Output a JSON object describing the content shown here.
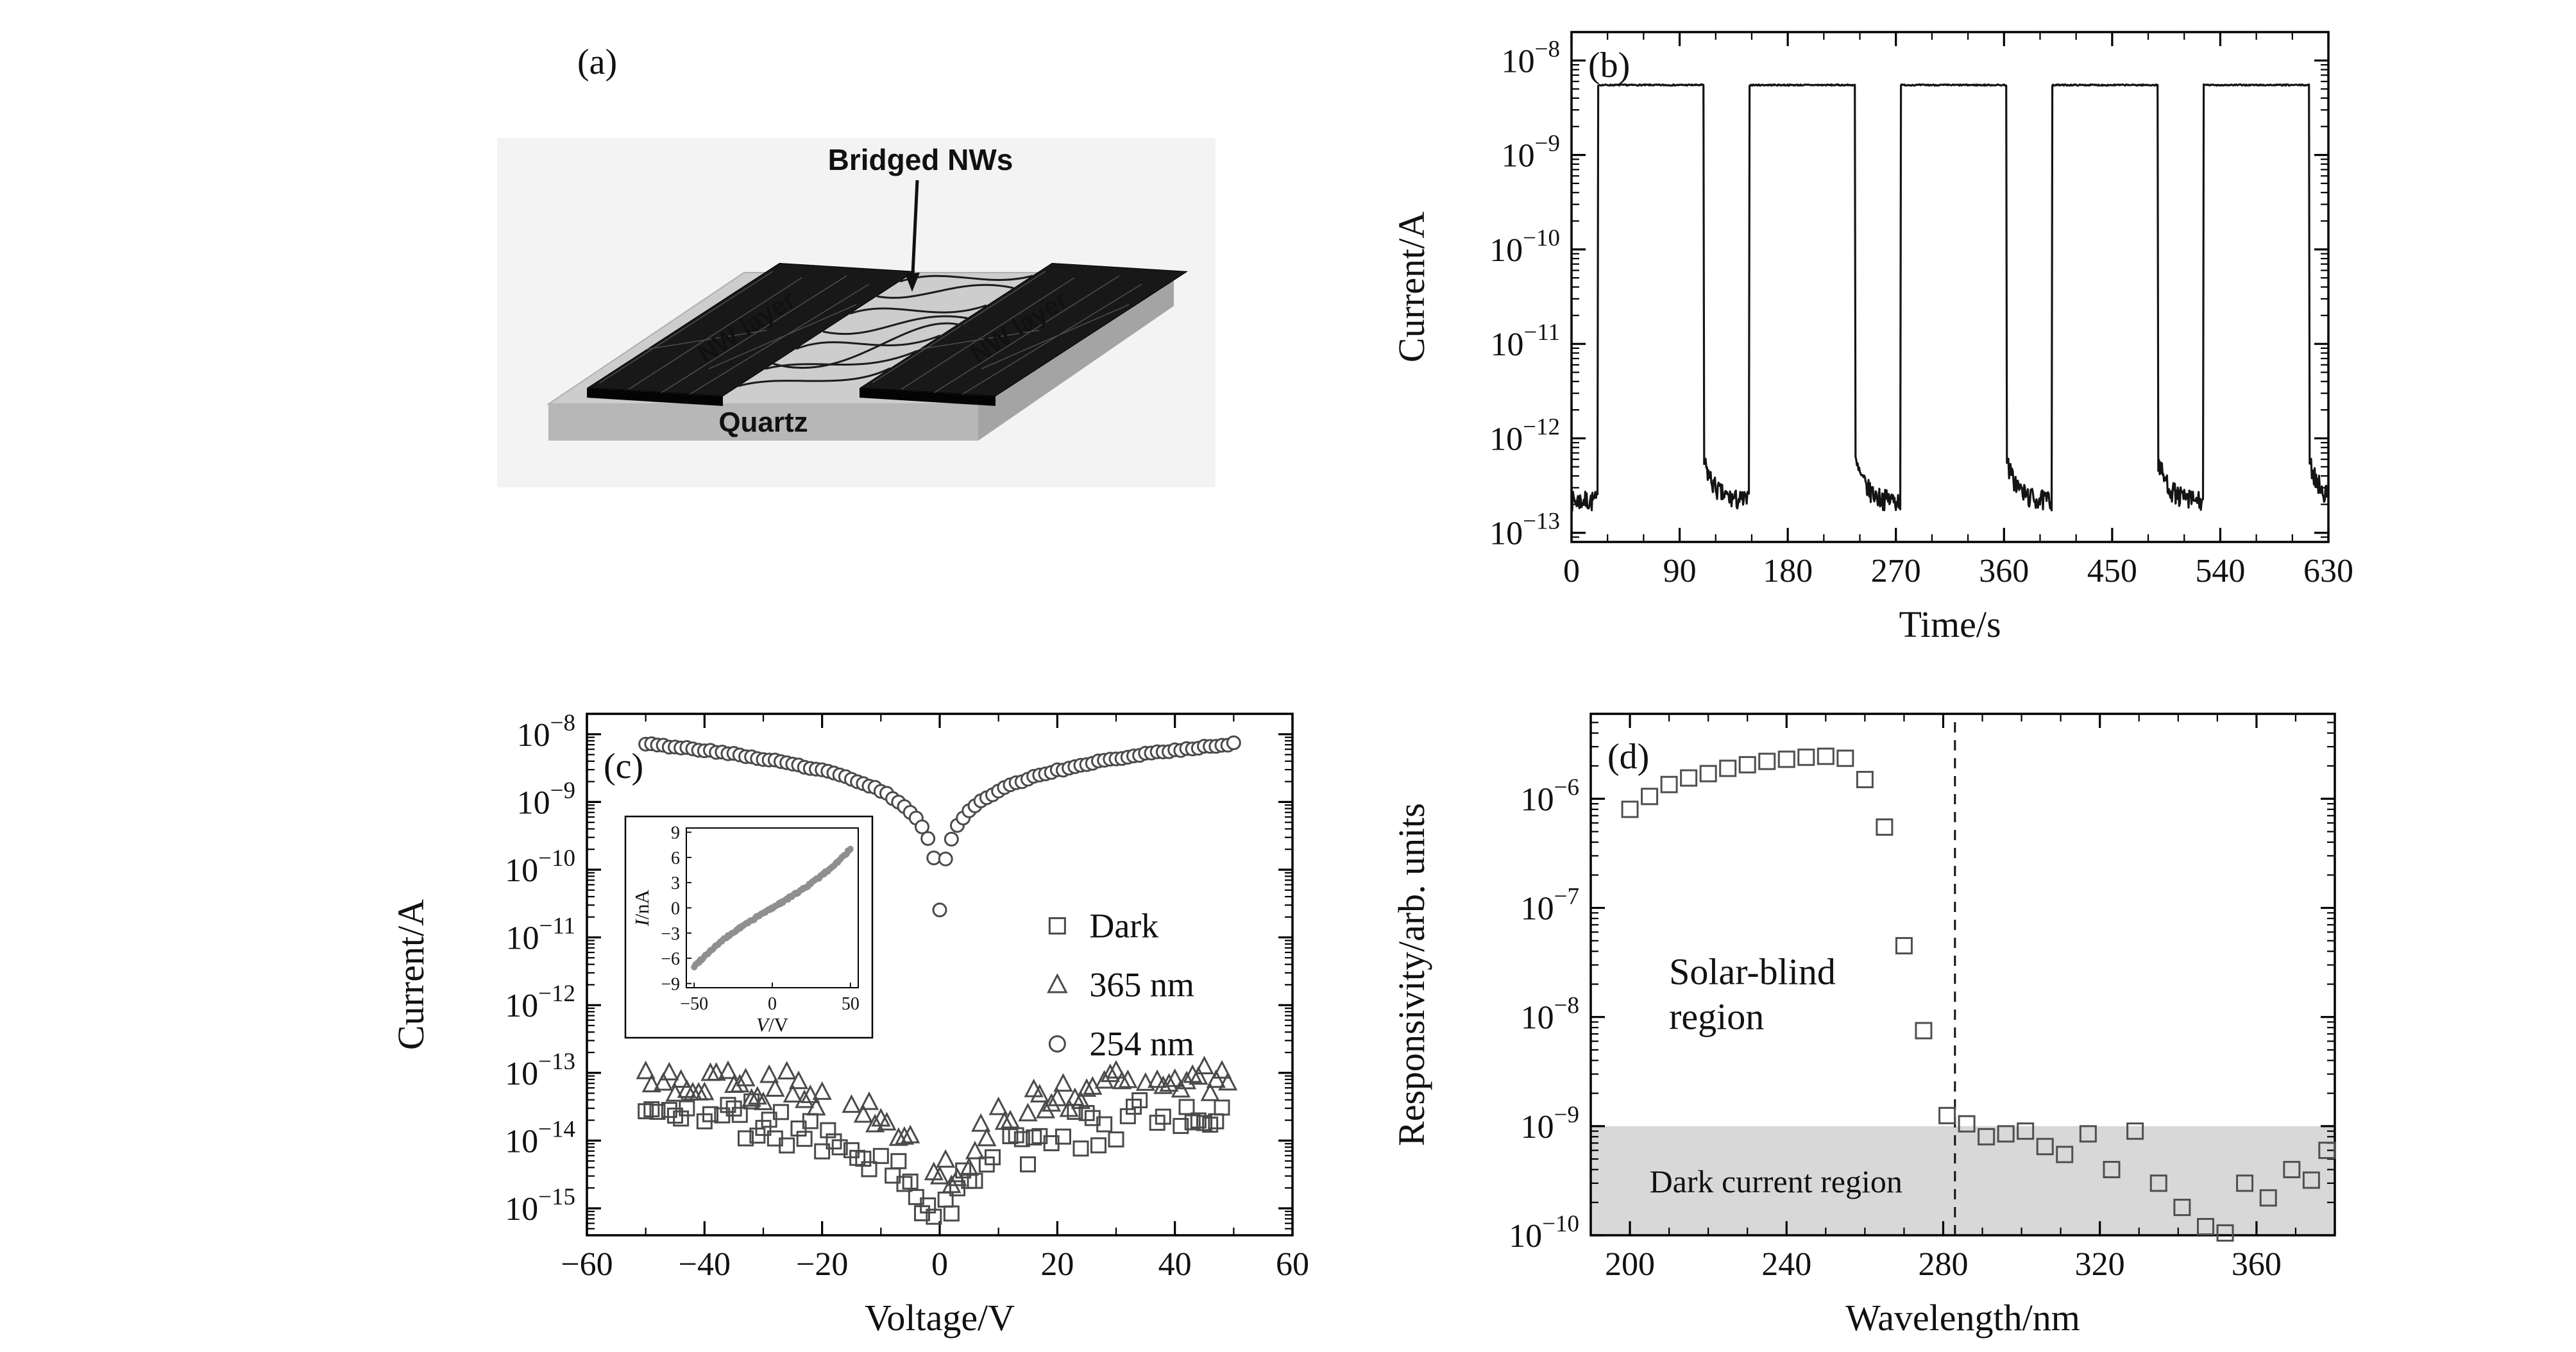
{
  "figure": {
    "background": "#ffffff",
    "text_color": "#111111"
  },
  "schematic": {
    "panel_label": "(a)",
    "bridged_nws_label": "Bridged NWs",
    "nw_layer_left_label": "NW layer",
    "nw_layer_right_label": "NW layer",
    "substrate_label": "Quartz",
    "colors": {
      "backdrop": "#f3f3f3",
      "slab_top": "#cdcdcd",
      "slab_front": "#b7b7b7",
      "slab_side": "#a4a4a4",
      "electrode": "#181818",
      "wire": "#1c1c1c",
      "electrode_text": "#ffffff",
      "label_text": "#111111"
    }
  },
  "chart_data": [
    {
      "id": "b",
      "panel_label": "(b)",
      "type": "line",
      "xlabel": "Time/s",
      "ylabel": "Current/A",
      "xlim": [
        0,
        630
      ],
      "xticks": [
        0,
        90,
        180,
        270,
        360,
        450,
        540,
        630
      ],
      "x_minor_step": 30,
      "ylog": true,
      "ylim": [
        8e-14,
        2e-08
      ],
      "ytick_exponents": [
        -13,
        -12,
        -11,
        -10,
        -9,
        -8
      ],
      "grid": false,
      "line_color": "#141414",
      "on_current_A": 5.5e-09,
      "off_current_A": 2.2e-13,
      "decay_tau_s": 7,
      "pulse_on_times_s": [
        22,
        148,
        274,
        400,
        526
      ],
      "pulse_off_times_s": [
        110,
        236,
        362,
        488,
        614
      ]
    },
    {
      "id": "c",
      "panel_label": "(c)",
      "type": "scatter",
      "xlabel": "Voltage/V",
      "ylabel": "Current/A",
      "xlim": [
        -60,
        60
      ],
      "xticks": [
        -60,
        -40,
        -20,
        0,
        20,
        40,
        60
      ],
      "x_minor_step": 10,
      "ylog": true,
      "ylim": [
        4e-16,
        2e-08
      ],
      "ytick_exponents": [
        -15,
        -14,
        -13,
        -12,
        -11,
        -10,
        -9,
        -8
      ],
      "legend": {
        "position": "middle-right",
        "items": [
          {
            "label": "Dark",
            "marker": "square"
          },
          {
            "label": "365 nm",
            "marker": "triangle"
          },
          {
            "label": "254 nm",
            "marker": "circle"
          }
        ]
      },
      "series": [
        {
          "name": "Dark",
          "marker": "square",
          "v_step": 1,
          "v_range": [
            -50,
            50
          ],
          "noise_dex": 0.3,
          "drop_fraction": 0.25,
          "anchors_V_A": [
            [
              -50,
              2.6e-14
            ],
            [
              -30,
              1.9e-14
            ],
            [
              -20,
              1.3e-14
            ],
            [
              -10,
              5e-15
            ],
            [
              -5,
              2.2e-15
            ],
            [
              0,
              1.1e-15
            ],
            [
              5,
              2.2e-15
            ],
            [
              10,
              5e-15
            ],
            [
              20,
              1.3e-14
            ],
            [
              30,
              1.9e-14
            ],
            [
              50,
              2.6e-14
            ]
          ]
        },
        {
          "name": "365 nm",
          "marker": "triangle",
          "v_step": 1,
          "v_range": [
            -50,
            50
          ],
          "noise_dex": 0.27,
          "drop_fraction": 0.2,
          "anchors_V_A": [
            [
              -50,
              8.5e-14
            ],
            [
              -30,
              6.5e-14
            ],
            [
              -20,
              4.5e-14
            ],
            [
              -10,
              1.8e-14
            ],
            [
              -5,
              7e-15
            ],
            [
              0,
              2.3e-15
            ],
            [
              5,
              7e-15
            ],
            [
              10,
              1.8e-14
            ],
            [
              20,
              4.5e-14
            ],
            [
              30,
              6.5e-14
            ],
            [
              50,
              8.5e-14
            ]
          ]
        },
        {
          "name": "254 nm",
          "marker": "circle",
          "v_step": 1,
          "v_range": [
            -50,
            50
          ],
          "noise_dex": 0.015,
          "drop_fraction": 0,
          "model": "I = 1.45e-10 * max(|V|, 0.18)",
          "slope_A_per_V": 1.45e-10,
          "min_eff_V": 0.18
        }
      ],
      "inset": {
        "type": "scatter",
        "xlabel": "V/V",
        "ylabel": "I/nA",
        "xlim": [
          -55,
          55
        ],
        "xticks": [
          -50,
          0,
          50
        ],
        "ylim": [
          -9.5,
          9.5
        ],
        "yticks": [
          -9,
          -6,
          -3,
          0,
          3,
          6,
          9
        ],
        "model": "I_nA = 0.11*V + 1.2e-5*V^3",
        "slope_nA_per_V": 0.11,
        "cubic_nA_per_V3": 1.2e-05,
        "v_step": 0.8,
        "point_color": "#8f8f8f"
      }
    },
    {
      "id": "d",
      "panel_label": "(d)",
      "type": "scatter",
      "xlabel": "Wavelength/nm",
      "ylabel": "Responsivity/arb. units",
      "xlim": [
        190,
        380
      ],
      "xticks": [
        200,
        240,
        280,
        320,
        360
      ],
      "x_minor_step": 10,
      "ylog": true,
      "ylim": [
        1e-10,
        6e-06
      ],
      "ytick_exponents": [
        -10,
        -9,
        -8,
        -7,
        -6
      ],
      "marker": "square",
      "points": [
        [
          200,
          8e-07
        ],
        [
          205,
          1.05e-06
        ],
        [
          210,
          1.35e-06
        ],
        [
          215,
          1.55e-06
        ],
        [
          220,
          1.7e-06
        ],
        [
          225,
          1.9e-06
        ],
        [
          230,
          2.05e-06
        ],
        [
          235,
          2.2e-06
        ],
        [
          240,
          2.3e-06
        ],
        [
          245,
          2.4e-06
        ],
        [
          250,
          2.45e-06
        ],
        [
          255,
          2.35e-06
        ],
        [
          260,
          1.5e-06
        ],
        [
          265,
          5.5e-07
        ],
        [
          270,
          4.5e-08
        ],
        [
          275,
          7.5e-09
        ],
        [
          281,
          1.25e-09
        ],
        [
          286,
          1.05e-09
        ],
        [
          291,
          8e-10
        ],
        [
          296,
          8.5e-10
        ],
        [
          301,
          9e-10
        ],
        [
          306,
          6.5e-10
        ],
        [
          311,
          5.5e-10
        ],
        [
          317,
          8.5e-10
        ],
        [
          323,
          4e-10
        ],
        [
          329,
          9e-10
        ],
        [
          335,
          3e-10
        ],
        [
          341,
          1.8e-10
        ],
        [
          347,
          1.2e-10
        ],
        [
          352,
          1e-10
        ],
        [
          357,
          3e-10
        ],
        [
          363,
          2.2e-10
        ],
        [
          369,
          4e-10
        ],
        [
          374,
          3.2e-10
        ],
        [
          378,
          6e-10
        ]
      ],
      "cutoff_line": {
        "x_nm": 283,
        "style": "dashed"
      },
      "dark_current_band": {
        "y_top_A": 1e-09,
        "fill": "#d8d8d8",
        "label": "Dark current region"
      },
      "annotation": {
        "lines": [
          "Solar-blind",
          "region"
        ],
        "x_nm": 210,
        "y_value": 2e-08
      }
    }
  ]
}
